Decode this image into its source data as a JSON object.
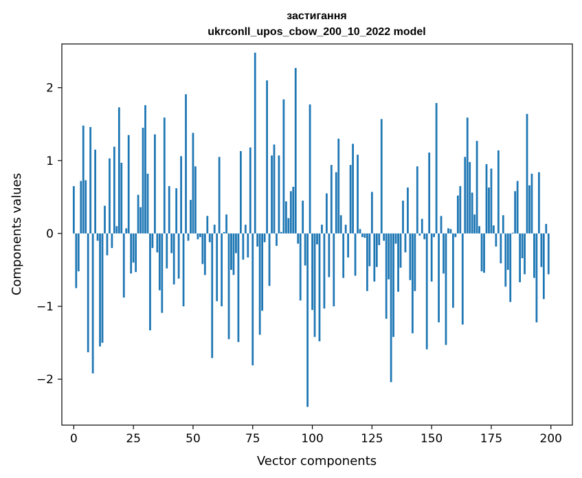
{
  "chart_data": {
    "type": "bar",
    "title_line1": "застигання",
    "title_line2": "ukrconll_upos_cbow_200_10_2022 model",
    "xlabel": "Vector components",
    "ylabel": "Components values",
    "xlim": [
      -5,
      209
    ],
    "ylim": [
      -2.63,
      2.6
    ],
    "xticks": [
      0,
      25,
      50,
      75,
      100,
      125,
      150,
      175,
      200
    ],
    "yticks": [
      -2,
      -1,
      0,
      1,
      2
    ],
    "xtick_labels": [
      "0",
      "25",
      "50",
      "75",
      "100",
      "125",
      "150",
      "175",
      "200"
    ],
    "ytick_labels": [
      "−2",
      "−1",
      "0",
      "1",
      "2"
    ],
    "bar_color": "#1f77b4",
    "grid": false,
    "x": [
      0,
      1,
      2,
      3,
      4,
      5,
      6,
      7,
      8,
      9,
      10,
      11,
      12,
      13,
      14,
      15,
      16,
      17,
      18,
      19,
      20,
      21,
      22,
      23,
      24,
      25,
      26,
      27,
      28,
      29,
      30,
      31,
      32,
      33,
      34,
      35,
      36,
      37,
      38,
      39,
      40,
      41,
      42,
      43,
      44,
      45,
      46,
      47,
      48,
      49,
      50,
      51,
      52,
      53,
      54,
      55,
      56,
      57,
      58,
      59,
      60,
      61,
      62,
      63,
      64,
      65,
      66,
      67,
      68,
      69,
      70,
      71,
      72,
      73,
      74,
      75,
      76,
      77,
      78,
      79,
      80,
      81,
      82,
      83,
      84,
      85,
      86,
      87,
      88,
      89,
      90,
      91,
      92,
      93,
      94,
      95,
      96,
      97,
      98,
      99,
      100,
      101,
      102,
      103,
      104,
      105,
      106,
      107,
      108,
      109,
      110,
      111,
      112,
      113,
      114,
      115,
      116,
      117,
      118,
      119,
      120,
      121,
      122,
      123,
      124,
      125,
      126,
      127,
      128,
      129,
      130,
      131,
      132,
      133,
      134,
      135,
      136,
      137,
      138,
      139,
      140,
      141,
      142,
      143,
      144,
      145,
      146,
      147,
      148,
      149,
      150,
      151,
      152,
      153,
      154,
      155,
      156,
      157,
      158,
      159,
      160,
      161,
      162,
      163,
      164,
      165,
      166,
      167,
      168,
      169,
      170,
      171,
      172,
      173,
      174,
      175,
      176,
      177,
      178,
      179,
      180,
      181,
      182,
      183,
      184,
      185,
      186,
      187,
      188,
      189,
      190,
      191,
      192,
      193,
      194,
      195,
      196,
      197,
      198,
      199
    ],
    "values": [
      0.65,
      -0.75,
      -0.52,
      0.72,
      1.48,
      0.73,
      -1.63,
      1.46,
      -1.92,
      1.15,
      -0.1,
      -1.55,
      -1.5,
      0.38,
      -0.3,
      1.03,
      -0.2,
      1.19,
      0.1,
      1.73,
      0.97,
      -0.88,
      0.07,
      1.35,
      -0.55,
      -0.4,
      -0.53,
      0.53,
      0.36,
      1.45,
      1.76,
      0.82,
      -1.33,
      -0.2,
      1.36,
      -0.26,
      -0.78,
      -1.09,
      1.59,
      -0.48,
      0.65,
      -0.27,
      -0.7,
      0.62,
      -0.62,
      1.06,
      -1.0,
      1.91,
      -0.1,
      0.46,
      1.38,
      0.92,
      -0.08,
      -0.05,
      -0.42,
      -0.57,
      0.24,
      -0.12,
      -1.71,
      0.12,
      -0.93,
      1.05,
      -1.0,
      0.02,
      0.26,
      -1.45,
      -0.5,
      -0.57,
      -0.27,
      -1.49,
      1.13,
      -0.36,
      0.12,
      -0.33,
      1.18,
      -1.81,
      2.48,
      -0.18,
      -1.39,
      -1.06,
      -0.12,
      2.1,
      -0.72,
      1.07,
      1.22,
      -0.17,
      1.07,
      0.02,
      1.84,
      0.44,
      0.21,
      0.58,
      0.64,
      2.27,
      -0.14,
      -0.92,
      0.45,
      -0.44,
      -2.38,
      1.77,
      -1.05,
      -1.42,
      -0.15,
      -1.48,
      0.12,
      -1.03,
      0.55,
      -0.6,
      0.94,
      -1.0,
      0.84,
      1.3,
      0.25,
      -0.61,
      0.12,
      -0.33,
      0.94,
      1.23,
      -0.58,
      1.08,
      0.06,
      -0.05,
      -0.06,
      -0.79,
      -0.45,
      0.57,
      -0.66,
      -0.46,
      -0.16,
      1.57,
      -0.1,
      -1.17,
      -0.63,
      -2.04,
      -1.42,
      -0.14,
      -0.8,
      -0.47,
      0.45,
      -0.26,
      0.63,
      -0.64,
      -1.37,
      -0.79,
      0.92,
      -0.03,
      0.2,
      -0.08,
      -1.59,
      1.11,
      -0.66,
      -0.05,
      1.79,
      -1.22,
      0.24,
      -0.55,
      -1.53,
      0.07,
      0.06,
      -1.02,
      -0.05,
      0.52,
      0.65,
      -1.25,
      1.05,
      1.59,
      0.98,
      0.56,
      0.26,
      1.27,
      0.1,
      -0.52,
      -0.54,
      0.95,
      0.63,
      0.89,
      0.11,
      -0.18,
      1.14,
      -0.41,
      0.25,
      -0.73,
      -0.5,
      -0.94,
      0.01,
      0.58,
      0.72,
      -0.67,
      -0.34,
      -0.56,
      1.64,
      0.66,
      0.82,
      -0.61,
      -1.22,
      0.84,
      -0.46,
      -0.9,
      0.13,
      -0.56
    ]
  }
}
